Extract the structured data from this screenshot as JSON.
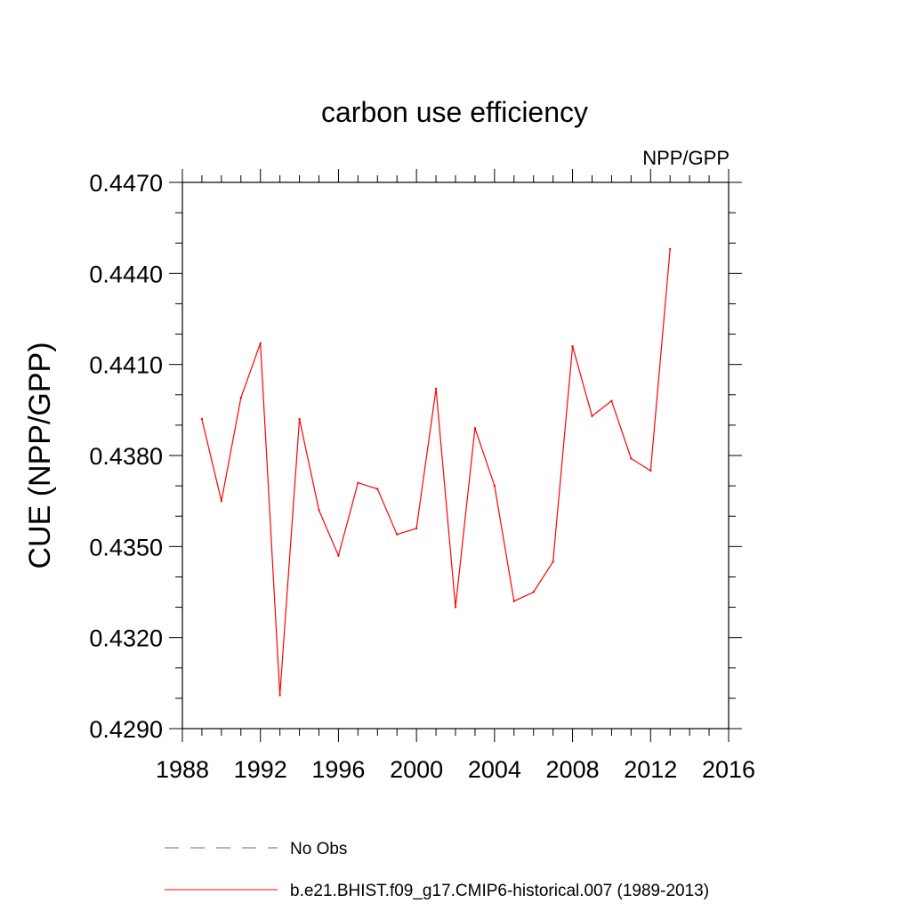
{
  "chart_data": {
    "type": "line",
    "title": "carbon use efficiency",
    "subtitle": "NPP/GPP",
    "xlabel": "",
    "ylabel": "CUE  (NPP/GPP)",
    "xlim": [
      1988,
      2016
    ],
    "ylim": [
      0.429,
      0.447
    ],
    "xticks": [
      1988,
      1992,
      1996,
      2000,
      2004,
      2008,
      2012,
      2016
    ],
    "xtick_labels": [
      "1988",
      "1992",
      "1996",
      "2000",
      "2004",
      "2008",
      "2012",
      "2016"
    ],
    "yticks": [
      0.429,
      0.432,
      0.435,
      0.438,
      0.441,
      0.444,
      0.447
    ],
    "ytick_labels": [
      "0.4290",
      "0.4320",
      "0.4350",
      "0.4380",
      "0.4410",
      "0.4440",
      "0.4470"
    ],
    "grid": false,
    "series": [
      {
        "name": "b.e21.BHIST.f09_g17.CMIP6-historical.007 (1989-2013)",
        "color": "#ff0000",
        "x": [
          1989,
          1990,
          1991,
          1992,
          1993,
          1994,
          1995,
          1996,
          1997,
          1998,
          1999,
          2000,
          2001,
          2002,
          2003,
          2004,
          2005,
          2006,
          2007,
          2008,
          2009,
          2010,
          2011,
          2012,
          2013
        ],
        "values": [
          0.4392,
          0.4365,
          0.4399,
          0.4417,
          0.4301,
          0.4392,
          0.4362,
          0.4347,
          0.4371,
          0.4369,
          0.4354,
          0.4356,
          0.4402,
          0.433,
          0.4389,
          0.437,
          0.4332,
          0.4335,
          0.4345,
          0.4416,
          0.4393,
          0.4398,
          0.4379,
          0.4375,
          0.4448
        ]
      }
    ],
    "legend": [
      {
        "label": "No Obs",
        "color": "#6a5acd",
        "style": "dashed"
      },
      {
        "label": "b.e21.BHIST.f09_g17.CMIP6-historical.007 (1989-2013)",
        "color": "#ff0000",
        "style": "solid"
      }
    ]
  }
}
